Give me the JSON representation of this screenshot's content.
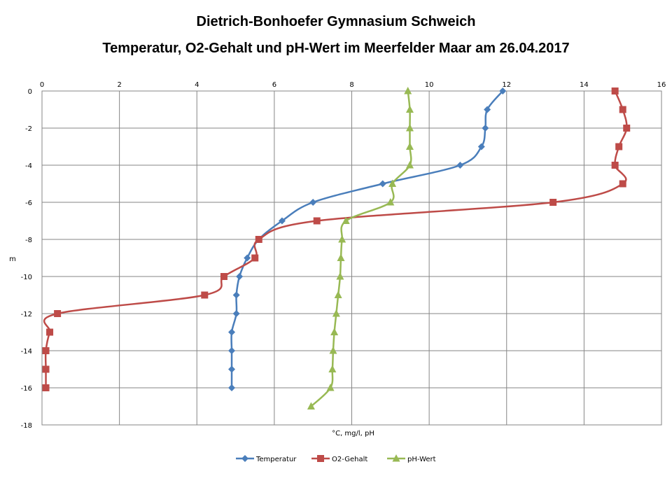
{
  "chart_data": {
    "type": "line",
    "title": "Dietrich-Bonhoefer Gymnasium Schweich",
    "subtitle": "Temperatur, O2-Gehalt und pH-Wert im Meerfelder Maar am 26.04.2017",
    "xlabel": "°C, mg/l, pH",
    "ylabel": "m",
    "xlim": [
      0,
      16
    ],
    "ylim": [
      -18,
      0
    ],
    "x_ticks": [
      0,
      2,
      4,
      6,
      8,
      10,
      12,
      14,
      16
    ],
    "y_ticks": [
      0,
      -2,
      -4,
      -6,
      -8,
      -10,
      -12,
      -14,
      -16,
      -18
    ],
    "grid": "horizontal and vertical",
    "legend_position": "bottom",
    "series": [
      {
        "name": "Temperatur",
        "color": "#4a7ebb",
        "marker": "diamond",
        "x": [
          11.9,
          11.5,
          11.45,
          11.35,
          10.8,
          8.8,
          7.0,
          6.2,
          5.6,
          5.3,
          5.1,
          5.02,
          5.02,
          4.9,
          4.9,
          4.9,
          4.9
        ],
        "y": [
          0,
          -1,
          -2,
          -3,
          -4,
          -5,
          -6,
          -7,
          -8,
          -9,
          -10,
          -11,
          -12,
          -13,
          -14,
          -15,
          -16
        ]
      },
      {
        "name": "O2-Gehalt",
        "color": "#be4b48",
        "marker": "square",
        "x": [
          14.8,
          15.0,
          15.1,
          14.9,
          14.8,
          15.0,
          13.2,
          7.1,
          5.6,
          5.5,
          4.7,
          4.2,
          0.4,
          0.2,
          0.1,
          0.1,
          0.1
        ],
        "y": [
          0,
          -1,
          -2,
          -3,
          -4,
          -5,
          -6,
          -7,
          -8,
          -9,
          -10,
          -11,
          -12,
          -13,
          -14,
          -15,
          -16
        ]
      },
      {
        "name": "pH-Wert",
        "color": "#98b954",
        "marker": "triangle",
        "x": [
          9.45,
          9.5,
          9.5,
          9.5,
          9.5,
          9.05,
          9.0,
          7.85,
          7.75,
          7.72,
          7.7,
          7.65,
          7.6,
          7.55,
          7.52,
          7.5,
          7.45,
          6.95
        ],
        "y": [
          0,
          -1,
          -2,
          -3,
          -4,
          -5,
          -6,
          -7,
          -8,
          -9,
          -10,
          -11,
          -12,
          -13,
          -14,
          -15,
          -16,
          -17
        ]
      }
    ]
  }
}
